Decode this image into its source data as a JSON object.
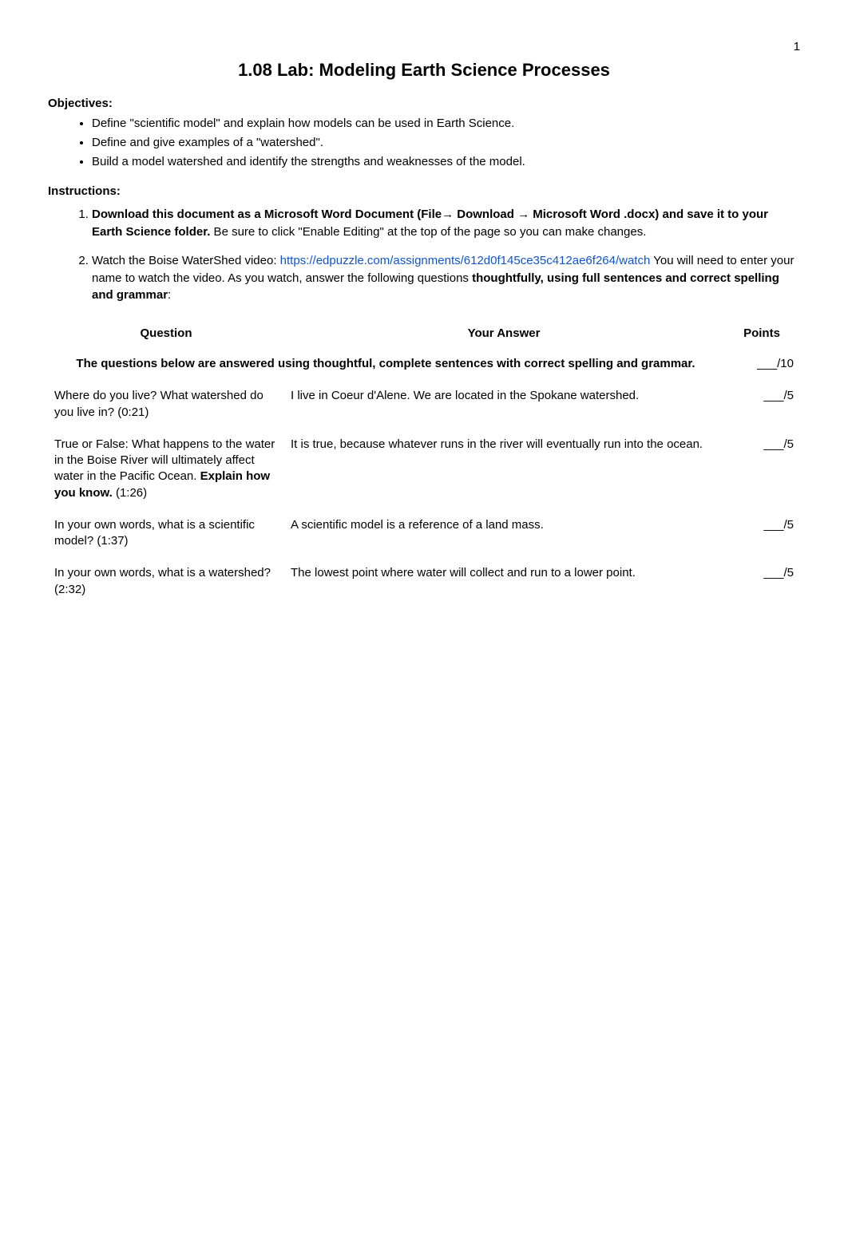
{
  "page_number": "1",
  "title": "1.08 Lab: Modeling Earth Science Processes",
  "objectives_label": "Objectives:",
  "objectives": [
    "Define \"scientific model\" and explain how models can be used in Earth Science.",
    "Define and give examples of a \"watershed\".",
    "Build a model watershed and identify the strengths and weaknesses of the model."
  ],
  "instructions_label": "Instructions:",
  "instruction1_prefix": "Download this document as a Microsoft Word Document (File→ Download → Microsoft Word .docx) and save it to your Earth Science folder.",
  "instruction1_suffix": " Be sure to click \"Enable Editing\" at the top of the page so you can make changes.",
  "instruction2_prefix": "Watch the Boise WaterShed video: ",
  "instruction2_link": "https://edpuzzle.com/assignments/612d0f145ce35c412ae6f264/watch",
  "instruction2_mid": " You will need to enter your name to watch the video. As you watch, answer the following questions ",
  "instruction2_bold": "thoughtfully, using full sentences and correct spelling and grammar",
  "instruction2_colon": ":",
  "table": {
    "headers": {
      "question": "Question",
      "answer": "Your Answer",
      "points": "Points"
    },
    "rubric": {
      "text": "The questions below are answered using thoughtful, complete sentences with correct spelling and grammar.",
      "points": "___/10"
    },
    "rows": [
      {
        "q": "Where do you live? What watershed do you live in? (0:21)",
        "a": "I live in Coeur d'Alene. We are located in the Spokane watershed.",
        "p": "___/5"
      },
      {
        "q_pre": "True or False: What happens to the water in the Boise River will ultimately affect water in the Pacific Ocean. ",
        "q_bold": "Explain how you know.",
        "q_post": " (1:26)",
        "a": "It is true, because whatever runs in the river will eventually run into the ocean.",
        "p": "___/5"
      },
      {
        "q": "In your own words, what is a scientific model? (1:37)",
        "a": "A scientific model is a reference of a land mass.",
        "p": "___/5"
      },
      {
        "q": "In your own words, what is a watershed? (2:32)",
        "a": "The lowest point where water will collect and run to a lower point.",
        "p": "___/5"
      }
    ]
  },
  "colors": {
    "text": "#000000",
    "link": "#1155cc",
    "background": "#ffffff"
  },
  "typography": {
    "body_fontsize": 15,
    "title_fontsize": 22,
    "font_family": "Arial"
  }
}
